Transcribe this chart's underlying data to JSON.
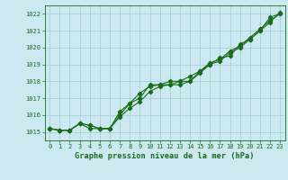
{
  "x": [
    0,
    1,
    2,
    3,
    4,
    5,
    6,
    7,
    8,
    9,
    10,
    11,
    12,
    13,
    14,
    15,
    16,
    17,
    18,
    19,
    20,
    21,
    22,
    23
  ],
  "line1": [
    1015.2,
    1015.1,
    1015.1,
    1015.5,
    1015.4,
    1015.2,
    1015.2,
    1016.0,
    1016.7,
    1017.0,
    1017.8,
    1017.8,
    1018.0,
    1018.0,
    1018.3,
    1018.6,
    1019.0,
    1019.4,
    1019.5,
    1020.2,
    1020.5,
    1021.0,
    1021.8,
    1022.0
  ],
  "line2": [
    1015.2,
    1015.1,
    1015.1,
    1015.5,
    1015.4,
    1015.2,
    1015.2,
    1016.2,
    1016.7,
    1017.3,
    1017.7,
    1017.8,
    1017.8,
    1018.0,
    1018.0,
    1018.6,
    1019.1,
    1019.3,
    1019.8,
    1020.1,
    1020.6,
    1021.1,
    1021.6,
    1022.0
  ],
  "line3": [
    1015.2,
    1015.1,
    1015.1,
    1015.5,
    1015.2,
    1015.2,
    1015.2,
    1015.9,
    1016.4,
    1016.8,
    1017.4,
    1017.7,
    1017.8,
    1017.8,
    1018.0,
    1018.5,
    1019.0,
    1019.2,
    1019.7,
    1020.0,
    1020.5,
    1021.0,
    1021.5,
    1022.1
  ],
  "ylim": [
    1014.5,
    1022.5
  ],
  "yticks": [
    1015,
    1016,
    1017,
    1018,
    1019,
    1020,
    1021,
    1022
  ],
  "line_color": "#1a6b1a",
  "bg_color": "#cce8f0",
  "grid_color": "#a8cfd8",
  "xlabel": "Graphe pression niveau de la mer (hPa)",
  "xlabel_color": "#1a6b1a",
  "tick_color": "#1a6b1a",
  "marker": "D",
  "markersize": 2.2,
  "linewidth": 0.8,
  "tick_fontsize": 5.0,
  "xlabel_fontsize": 6.2
}
